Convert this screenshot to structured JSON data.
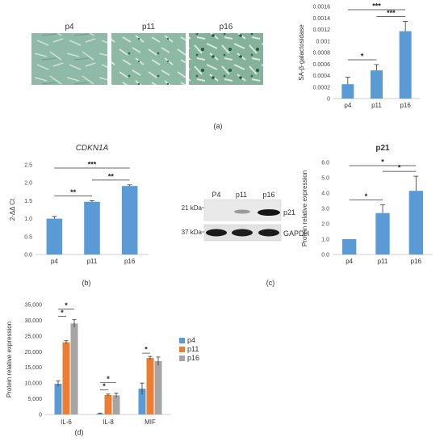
{
  "photos": {
    "labels": [
      "p4",
      "p11",
      "p16"
    ]
  },
  "panel_labels": {
    "a": "(a)",
    "b": "(b)",
    "c": "(c)",
    "d": "(d)"
  },
  "blot": {
    "lanes": [
      "P4",
      "p11",
      "p16"
    ],
    "markers": [
      "21 kDa",
      "37 kDa"
    ],
    "proteins": [
      "p21",
      "GAPDH"
    ]
  },
  "colors": {
    "blue": "#5b9bd5",
    "orange": "#ed7d31",
    "gray": "#a5a5a5",
    "axis": "#bfbfbf"
  },
  "chart_data": [
    {
      "id": "sa-gal",
      "type": "bar",
      "title": "",
      "ylabel": "SA-β-galactosidase",
      "categories": [
        "p4",
        "p11",
        "p16"
      ],
      "values": [
        0.00025,
        0.00049,
        0.00117
      ],
      "errors": [
        0.00012,
        0.0001,
        0.00017
      ],
      "ylim": [
        0,
        0.0016
      ],
      "yticks": [
        "0",
        "0.0002",
        "0.0004",
        "0.0006",
        "0.0008",
        "0.001",
        "0.0012",
        "0.0014",
        "0.0016"
      ],
      "significance": [
        {
          "from": 0,
          "to": 1,
          "label": "*"
        },
        {
          "from": 1,
          "to": 2,
          "label": "***"
        },
        {
          "from": 0,
          "to": 2,
          "label": "***"
        }
      ],
      "grid": false
    },
    {
      "id": "cdkn1a",
      "type": "bar",
      "title": "CDKN1A",
      "ylabel": "2-ΔΔ Ct",
      "categories": [
        "p4",
        "p11",
        "p16"
      ],
      "values": [
        1.0,
        1.47,
        1.91
      ],
      "errors": [
        0.06,
        0.03,
        0.03
      ],
      "ylim": [
        0,
        2.5
      ],
      "yticks": [
        "0.0",
        "0.5",
        "1.0",
        "1.5",
        "2.0",
        "2.5"
      ],
      "significance": [
        {
          "from": 0,
          "to": 1,
          "label": "**"
        },
        {
          "from": 1,
          "to": 2,
          "label": "**"
        },
        {
          "from": 0,
          "to": 2,
          "label": "***"
        }
      ],
      "grid": false
    },
    {
      "id": "p21",
      "type": "bar",
      "title": "p21",
      "ylabel": "Protein relative expression",
      "categories": [
        "p4",
        "p11",
        "p16"
      ],
      "values": [
        1.0,
        2.7,
        4.15
      ],
      "errors": [
        0.0,
        0.55,
        0.95
      ],
      "ylim": [
        0,
        6
      ],
      "yticks": [
        "0.0",
        "1.0",
        "2.0",
        "3.0",
        "4.0",
        "5.0",
        "6.0"
      ],
      "significance": [
        {
          "from": 0,
          "to": 1,
          "label": "*"
        },
        {
          "from": 1,
          "to": 2,
          "label": "*"
        },
        {
          "from": 0,
          "to": 2,
          "label": "*"
        }
      ],
      "grid": false
    },
    {
      "id": "cytokines",
      "type": "bar",
      "title": "",
      "ylabel": "Protein relative expression",
      "categories": [
        "IL-6",
        "IL-8",
        "MIF"
      ],
      "series": [
        {
          "name": "p4",
          "values": [
            9800,
            300,
            8200
          ],
          "errors": [
            900,
            150,
            1800
          ]
        },
        {
          "name": "p11",
          "values": [
            23000,
            6200,
            18000
          ],
          "errors": [
            500,
            300,
            500
          ]
        },
        {
          "name": "p16",
          "values": [
            29000,
            6100,
            17000
          ],
          "errors": [
            1200,
            700,
            1300
          ]
        }
      ],
      "ylim": [
        0,
        35000
      ],
      "yticks": [
        "0",
        "5,000",
        "10,000",
        "15,000",
        "20,000",
        "25,000",
        "30,000",
        "35,000"
      ],
      "significance": [
        {
          "cat": 0,
          "from": 0,
          "to": 1,
          "label": "*"
        },
        {
          "cat": 0,
          "from": 0,
          "to": 2,
          "label": "*"
        },
        {
          "cat": 1,
          "from": 0,
          "to": 1,
          "label": "*"
        },
        {
          "cat": 1,
          "from": 0,
          "to": 2,
          "label": "*"
        },
        {
          "cat": 2,
          "from": 0,
          "to": 1,
          "label": "*"
        }
      ],
      "legend": "right",
      "grid": false
    }
  ]
}
